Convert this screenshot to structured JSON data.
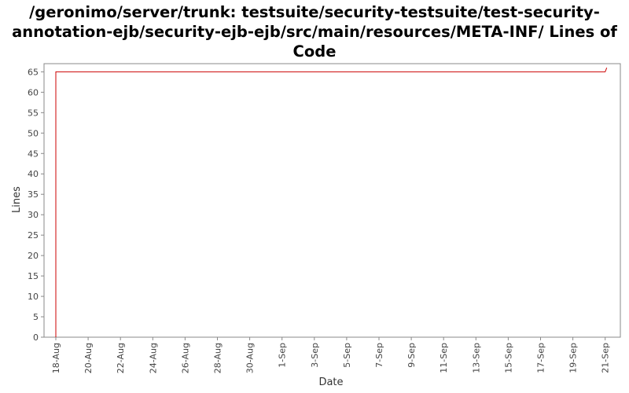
{
  "chart_data": {
    "type": "line",
    "title": "/geronimo/server/trunk: testsuite/security-testsuite/test-security-annotation-ejb/security-ejb-ejb/src/main/resources/META-INF/ Lines of Code",
    "xlabel": "Date",
    "ylabel": "Lines",
    "x_tick_labels": [
      "18-Aug",
      "20-Aug",
      "22-Aug",
      "24-Aug",
      "26-Aug",
      "28-Aug",
      "30-Aug",
      "1-Sep",
      "3-Sep",
      "5-Sep",
      "7-Sep",
      "9-Sep",
      "11-Sep",
      "13-Sep",
      "15-Sep",
      "17-Sep",
      "19-Sep",
      "21-Sep"
    ],
    "y_ticks": [
      0,
      5,
      10,
      15,
      20,
      25,
      30,
      35,
      40,
      45,
      50,
      55,
      60,
      65
    ],
    "ylim": [
      0,
      67
    ],
    "xlim": [
      "18-Aug",
      "21-Sep"
    ],
    "grid": false,
    "legend": "none",
    "series": [
      {
        "color": "#cc0000",
        "x": [
          "18-Aug",
          "18-Aug",
          "21-Sep",
          "21-Sep"
        ],
        "values": [
          0,
          65,
          65,
          66
        ]
      }
    ]
  }
}
